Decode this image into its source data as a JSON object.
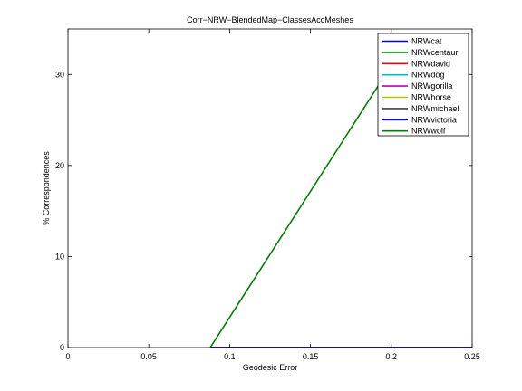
{
  "chart_data": {
    "type": "line",
    "title": "Corr−NRW−BlendedMap−ClassesAccMeshes",
    "xlabel": "Geodesic Error",
    "ylabel": "% Correspondences",
    "xlim": [
      0,
      0.25
    ],
    "ylim": [
      0,
      35
    ],
    "xticks": [
      0,
      0.05,
      0.1,
      0.15,
      0.2,
      0.25
    ],
    "xtick_labels": [
      "0",
      "0.05",
      "0.1",
      "0.15",
      "0.2",
      "0.25"
    ],
    "yticks": [
      0,
      10,
      20,
      30
    ],
    "ytick_labels": [
      "0",
      "10",
      "20",
      "30"
    ],
    "grid": false,
    "legend_position": "top-right",
    "series": [
      {
        "name": "NRWcat",
        "color": "#0000ff",
        "x": [
          0.088,
          0.25
        ],
        "y": [
          0,
          0
        ]
      },
      {
        "name": "NRWcentaur",
        "color": "#008000",
        "x": [
          0.088,
          0.25
        ],
        "y": [
          0,
          0
        ]
      },
      {
        "name": "NRWdavid",
        "color": "#ff0000",
        "x": [
          0.088,
          0.25
        ],
        "y": [
          0,
          0
        ]
      },
      {
        "name": "NRWdog",
        "color": "#00bfbf",
        "x": [
          0.088,
          0.25
        ],
        "y": [
          0,
          0
        ]
      },
      {
        "name": "NRWgorilla",
        "color": "#bf00bf",
        "x": [
          0.088,
          0.25
        ],
        "y": [
          0,
          0
        ]
      },
      {
        "name": "NRWhorse",
        "color": "#bfbf00",
        "x": [
          0.088,
          0.25
        ],
        "y": [
          0,
          0
        ]
      },
      {
        "name": "NRWmichael",
        "color": "#404040",
        "x": [
          0.088,
          0.25
        ],
        "y": [
          0,
          0
        ]
      },
      {
        "name": "NRWvictoria",
        "color": "#0000ff",
        "x": [
          0.088,
          0.25
        ],
        "y": [
          0,
          0
        ]
      },
      {
        "name": "NRWwolf",
        "color": "#008000",
        "x": [
          0.088,
          0.1935
        ],
        "y": [
          0,
          29.2
        ]
      }
    ]
  }
}
